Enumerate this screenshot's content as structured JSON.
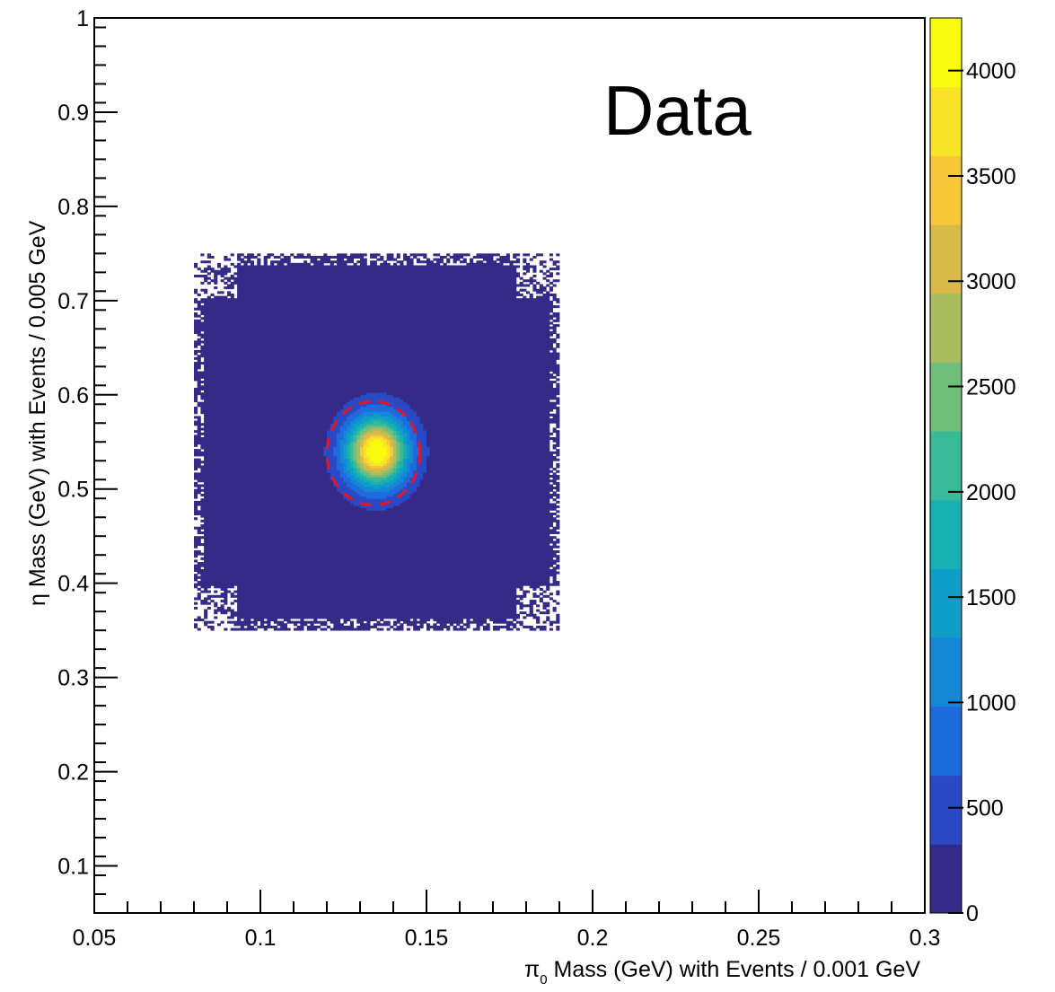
{
  "chart_data": {
    "type": "heatmap",
    "annotation": "Data",
    "xlabel_symbol": "π",
    "xlabel_sub": "0",
    "xlabel_rest": " Mass (GeV) with Events / 0.001 GeV",
    "ylabel_symbol": "η",
    "ylabel_rest": " Mass (GeV) with Events / 0.005 GeV",
    "xlim": [
      0.05,
      0.3
    ],
    "ylim": [
      0.05,
      1.0
    ],
    "x_tick_labels": [
      "0.05",
      "0.1",
      "0.15",
      "0.2",
      "0.25",
      "0.3"
    ],
    "x_tick_values": [
      0.05,
      0.1,
      0.15,
      0.2,
      0.25,
      0.3
    ],
    "y_tick_labels": [
      "0.1",
      "0.2",
      "0.3",
      "0.4",
      "0.5",
      "0.6",
      "0.7",
      "0.8",
      "0.9",
      "1"
    ],
    "y_tick_values": [
      0.1,
      0.2,
      0.3,
      0.4,
      0.5,
      0.6,
      0.7,
      0.8,
      0.9,
      1.0
    ],
    "z_range": [
      0,
      4250
    ],
    "z_tick_labels": [
      "0",
      "500",
      "1000",
      "1500",
      "2000",
      "2500",
      "3000",
      "3500",
      "4000"
    ],
    "z_tick_values": [
      0,
      500,
      1000,
      1500,
      2000,
      2500,
      3000,
      3500,
      4000
    ],
    "palette": [
      "#352a87",
      "#2a49c4",
      "#1e6bde",
      "#1487d6",
      "#0f9ec8",
      "#19b0b3",
      "#38ba99",
      "#6fbe7c",
      "#a9bd5f",
      "#d8b94a",
      "#f7c83a",
      "#f9e326",
      "#f9fb0e"
    ],
    "data_region": {
      "x": [
        0.08,
        0.19
      ],
      "y": [
        0.35,
        0.75
      ]
    },
    "peak": {
      "x": 0.135,
      "y": 0.54,
      "value": 4200
    },
    "selection_circle": {
      "cx": 0.134,
      "cy": 0.538,
      "r_x": 0.014,
      "r_y": 0.055,
      "color": "#e8141e",
      "style": "dashed"
    }
  }
}
